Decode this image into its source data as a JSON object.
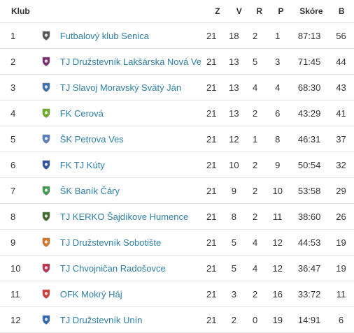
{
  "headers": {
    "club": "Klub",
    "z": "Z",
    "v": "V",
    "r": "R",
    "p": "P",
    "score": "Skóre",
    "b": "B"
  },
  "rows": [
    {
      "rank": "1",
      "club": "Futbalový klub Senica",
      "z": "21",
      "v": "18",
      "r": "2",
      "p": "1",
      "score": "87:13",
      "b": "56",
      "icon": "ball-crest-icon",
      "color": "#555555"
    },
    {
      "rank": "2",
      "club": "TJ Družstevník Lakšárska Nová Ves",
      "z": "21",
      "v": "13",
      "r": "5",
      "p": "3",
      "score": "71:45",
      "b": "44",
      "icon": "shield-crest-icon",
      "color": "#7a2b6e"
    },
    {
      "rank": "3",
      "club": "TJ Slavoj Moravský Svätý Ján",
      "z": "21",
      "v": "13",
      "r": "4",
      "p": "4",
      "score": "68:30",
      "b": "43",
      "icon": "striped-crest-icon",
      "color": "#3b6fb6"
    },
    {
      "rank": "4",
      "club": "FK Cerová",
      "z": "21",
      "v": "13",
      "r": "2",
      "p": "6",
      "score": "43:29",
      "b": "41",
      "icon": "green-crest-icon",
      "color": "#6ab023"
    },
    {
      "rank": "5",
      "club": "ŠK Petrova Ves",
      "z": "21",
      "v": "12",
      "r": "1",
      "p": "8",
      "score": "46:31",
      "b": "37",
      "icon": "figure-crest-icon",
      "color": "#5a7fc0"
    },
    {
      "rank": "6",
      "club": "FK TJ Kúty",
      "z": "21",
      "v": "10",
      "r": "2",
      "p": "9",
      "score": "50:54",
      "b": "32",
      "icon": "blue-shield-icon",
      "color": "#2a4f9e"
    },
    {
      "rank": "7",
      "club": "ŠK Baník Čáry",
      "z": "21",
      "v": "9",
      "r": "2",
      "p": "10",
      "score": "53:58",
      "b": "29",
      "icon": "round-green-crest-icon",
      "color": "#3e9b4f"
    },
    {
      "rank": "8",
      "club": "TJ KERKO Šajdíkove Humence",
      "z": "21",
      "v": "8",
      "r": "2",
      "p": "11",
      "score": "38:60",
      "b": "26",
      "icon": "tower-crest-icon",
      "color": "#3f6b2a"
    },
    {
      "rank": "9",
      "club": "TJ Družstevník Sobotište",
      "z": "21",
      "v": "5",
      "r": "4",
      "p": "12",
      "score": "44:53",
      "b": "19",
      "icon": "orange-crest-icon",
      "color": "#d9751e"
    },
    {
      "rank": "10",
      "club": "TJ Chvojničan Radošovce",
      "z": "21",
      "v": "5",
      "r": "4",
      "p": "12",
      "score": "36:47",
      "b": "19",
      "icon": "circle-crest-icon",
      "color": "#c0304a"
    },
    {
      "rank": "11",
      "club": "OFK Mokrý Háj",
      "z": "21",
      "v": "3",
      "r": "2",
      "p": "16",
      "score": "33:72",
      "b": "11",
      "icon": "red-ball-crest-icon",
      "color": "#d23b3b"
    },
    {
      "rank": "12",
      "club": "TJ Družstevník Unín",
      "z": "21",
      "v": "2",
      "r": "0",
      "p": "19",
      "score": "14:91",
      "b": "6",
      "icon": "blue-white-crest-icon",
      "color": "#2d69b3"
    }
  ]
}
